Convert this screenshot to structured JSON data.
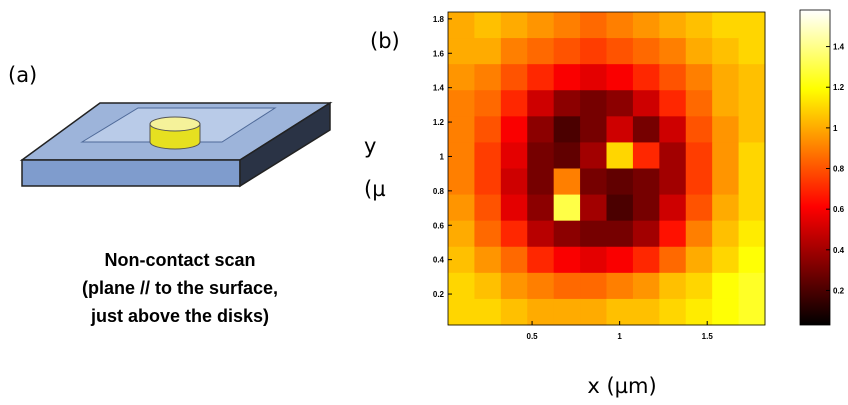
{
  "panel_a": {
    "label": "(a)",
    "caption": [
      "Non-contact scan",
      "(plane // to the surface,",
      "just above the disks)"
    ]
  },
  "chart_data": {
    "type": "heatmap",
    "panel_label": "(b)",
    "xlabel": "x (µm)",
    "ylabel": [
      "y",
      "(µ"
    ],
    "xlim": [
      0.02,
      1.83
    ],
    "ylim": [
      0.02,
      1.84
    ],
    "xticks": [
      0.5,
      1,
      1.5
    ],
    "yticks": [
      0.2,
      0.4,
      0.6,
      0.8,
      1,
      1.2,
      1.4,
      1.6,
      1.8
    ],
    "colormap": "hot",
    "clim": [
      0.03,
      1.58
    ],
    "cticks": [
      0.2,
      0.4,
      0.6,
      0.8,
      1,
      1.2,
      1.4
    ],
    "z": [
      [
        1.0,
        1.05,
        1.0,
        0.95,
        0.9,
        0.85,
        0.9,
        0.95,
        1.0,
        1.05,
        1.1,
        1.1
      ],
      [
        1.0,
        1.0,
        0.9,
        0.85,
        0.8,
        0.75,
        0.8,
        0.85,
        0.9,
        1.0,
        1.05,
        1.1
      ],
      [
        0.95,
        0.9,
        0.8,
        0.7,
        0.6,
        0.55,
        0.6,
        0.7,
        0.8,
        0.9,
        1.0,
        1.05
      ],
      [
        0.9,
        0.85,
        0.7,
        0.5,
        0.35,
        0.3,
        0.35,
        0.5,
        0.7,
        0.85,
        1.0,
        1.05
      ],
      [
        0.9,
        0.8,
        0.6,
        0.35,
        0.2,
        0.3,
        0.5,
        0.3,
        0.5,
        0.8,
        0.95,
        1.05
      ],
      [
        0.9,
        0.75,
        0.55,
        0.3,
        0.25,
        0.4,
        1.1,
        0.7,
        0.4,
        0.75,
        0.95,
        1.1
      ],
      [
        0.9,
        0.75,
        0.5,
        0.3,
        0.9,
        0.3,
        0.25,
        0.3,
        0.4,
        0.75,
        0.95,
        1.1
      ],
      [
        0.95,
        0.8,
        0.55,
        0.35,
        1.3,
        0.4,
        0.2,
        0.3,
        0.5,
        0.8,
        1.0,
        1.1
      ],
      [
        1.0,
        0.85,
        0.7,
        0.45,
        0.35,
        0.3,
        0.3,
        0.4,
        0.65,
        0.9,
        1.05,
        1.15
      ],
      [
        1.05,
        0.95,
        0.85,
        0.7,
        0.6,
        0.55,
        0.6,
        0.7,
        0.85,
        1.0,
        1.1,
        1.2
      ],
      [
        1.1,
        1.05,
        0.95,
        0.9,
        0.85,
        0.85,
        0.9,
        0.95,
        1.05,
        1.1,
        1.2,
        1.25
      ],
      [
        1.1,
        1.1,
        1.05,
        1.0,
        1.0,
        1.0,
        1.05,
        1.05,
        1.1,
        1.15,
        1.2,
        1.25
      ]
    ]
  }
}
